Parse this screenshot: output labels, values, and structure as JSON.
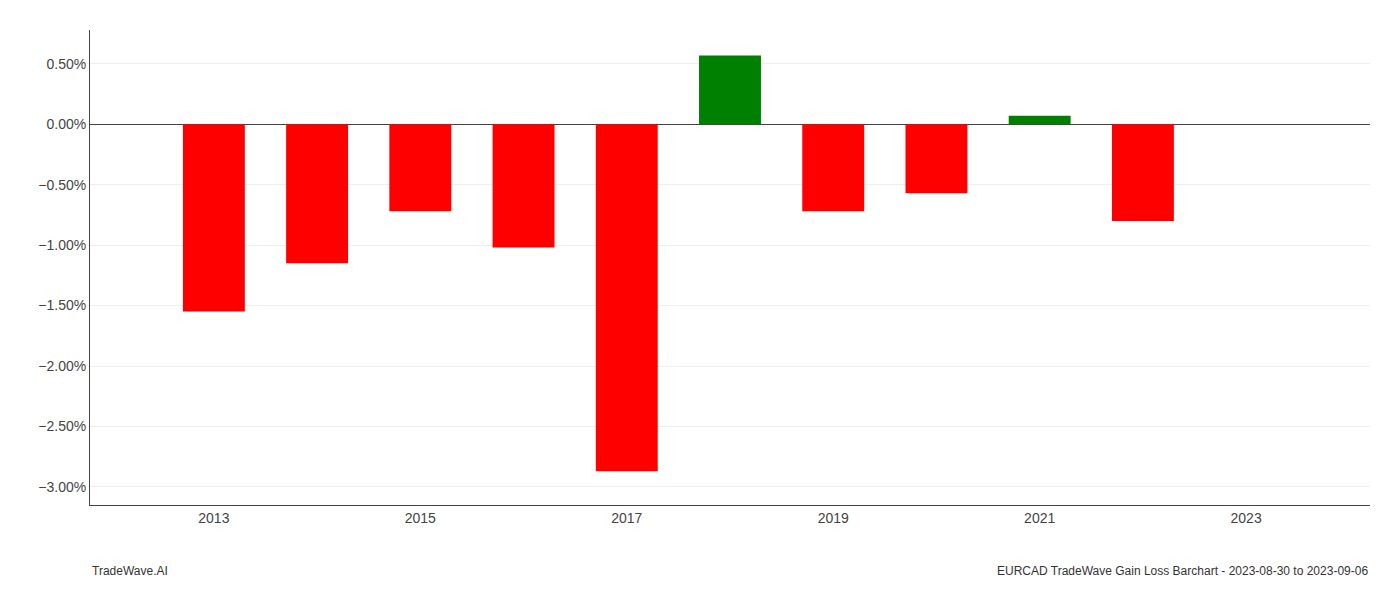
{
  "chart_data": {
    "type": "bar",
    "x": [
      2013,
      2014,
      2015,
      2016,
      2017,
      2018,
      2019,
      2020,
      2021,
      2022
    ],
    "values": [
      -1.55,
      -1.15,
      -0.72,
      -1.02,
      -2.87,
      0.57,
      -0.72,
      -0.57,
      0.07,
      -0.8
    ],
    "colors": [
      "#ff0000",
      "#ff0000",
      "#ff0000",
      "#ff0000",
      "#ff0000",
      "#008000",
      "#ff0000",
      "#ff0000",
      "#008000",
      "#ff0000"
    ],
    "xlim": [
      2011.8,
      2024.2
    ],
    "xticks": [
      2013,
      2015,
      2017,
      2019,
      2021,
      2023
    ],
    "ylim": [
      -3.15,
      0.78
    ],
    "yticks": [
      {
        "value": -3.0,
        "label": "−3.00%"
      },
      {
        "value": -2.5,
        "label": "−2.50%"
      },
      {
        "value": -2.0,
        "label": "−2.00%"
      },
      {
        "value": -1.5,
        "label": "−1.50%"
      },
      {
        "value": -1.0,
        "label": "−1.00%"
      },
      {
        "value": -0.5,
        "label": "−0.50%"
      },
      {
        "value": 0.0,
        "label": "0.00%"
      },
      {
        "value": 0.5,
        "label": "0.50%"
      }
    ],
    "grid": true,
    "annotations": [
      "TradeWave.AI",
      "EURCAD TradeWave Gain Loss Barchart - 2023-08-30 to 2023-09-06"
    ]
  }
}
